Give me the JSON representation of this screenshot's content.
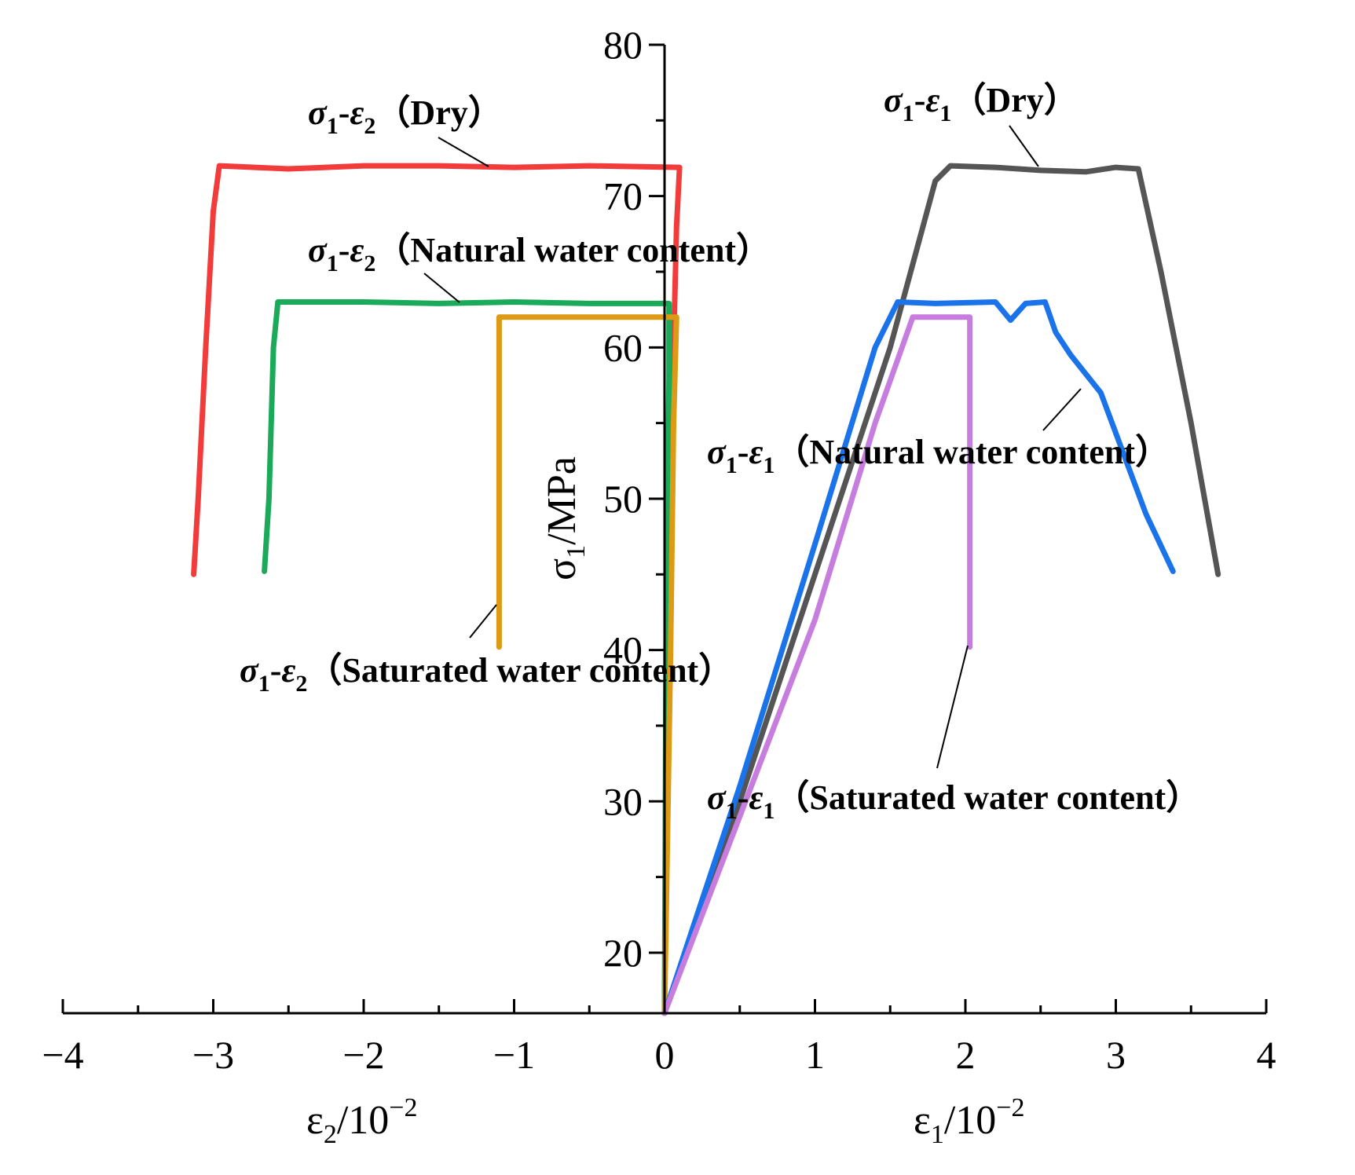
{
  "chart_data": {
    "type": "line",
    "x_axis": {
      "range": [
        -4,
        4
      ],
      "ticks": [
        "−4",
        "−3",
        "−2",
        "−1",
        "0",
        "1",
        "2",
        "3",
        "4"
      ],
      "tick_values": [
        -4,
        -3,
        -2,
        -1,
        0,
        1,
        2,
        3,
        4
      ]
    },
    "y_axis": {
      "range": [
        16,
        80
      ],
      "ticks": [
        "20",
        "30",
        "40",
        "50",
        "60",
        "70",
        "80"
      ],
      "tick_values": [
        20,
        30,
        40,
        50,
        60,
        70,
        80
      ]
    },
    "labels": {
      "ylabel": {
        "main": "σ",
        "sub": "1",
        "rest": "/MPa"
      },
      "xlabel_left": {
        "main": "ε",
        "sub": "2",
        "rest": "/10",
        "sup": "−2"
      },
      "xlabel_right": {
        "main": "ε",
        "sub": "1",
        "rest": "/10",
        "sup": "−2"
      }
    },
    "series": [
      {
        "id": "e2-dry",
        "color": "#f23b3b",
        "label": {
          "sigma": "σ",
          "s_sub": "1",
          "eps": "ε",
          "e_sub": "2",
          "condition": "（Dry）"
        },
        "points": [
          [
            0,
            16
          ],
          [
            0.02,
            40
          ],
          [
            0.06,
            60
          ],
          [
            0.08,
            68
          ],
          [
            0.1,
            71.9
          ],
          [
            -0.5,
            72
          ],
          [
            -1,
            71.9
          ],
          [
            -1.5,
            72
          ],
          [
            -2,
            72
          ],
          [
            -2.5,
            71.8
          ],
          [
            -2.96,
            72
          ],
          [
            -3.0,
            69
          ],
          [
            -3.05,
            60
          ],
          [
            -3.1,
            50
          ],
          [
            -3.13,
            45
          ]
        ]
      },
      {
        "id": "e2-natural",
        "color": "#1aaa5a",
        "label": {
          "sigma": "σ",
          "s_sub": "1",
          "eps": "ε",
          "e_sub": "2",
          "condition": "（Natural water content）"
        },
        "points": [
          [
            0,
            16
          ],
          [
            0.01,
            40
          ],
          [
            0.03,
            58
          ],
          [
            0.03,
            62.9
          ],
          [
            -0.5,
            62.9
          ],
          [
            -1,
            63
          ],
          [
            -1.5,
            62.9
          ],
          [
            -2,
            63
          ],
          [
            -2.57,
            63
          ],
          [
            -2.6,
            60
          ],
          [
            -2.63,
            50
          ],
          [
            -2.66,
            45.2
          ]
        ]
      },
      {
        "id": "e2-saturated",
        "color": "#dd9a14",
        "label": {
          "sigma": "σ",
          "s_sub": "1",
          "eps": "ε",
          "e_sub": "2",
          "condition": "（Saturated water content）"
        },
        "points": [
          [
            0,
            16
          ],
          [
            0.04,
            40
          ],
          [
            0.06,
            55
          ],
          [
            0.08,
            62
          ],
          [
            -0.5,
            62
          ],
          [
            -1.1,
            62
          ],
          [
            -1.1,
            40.2
          ]
        ]
      },
      {
        "id": "e1-dry",
        "color": "#555555",
        "label": {
          "sigma": "σ",
          "s_sub": "1",
          "eps": "ε",
          "e_sub": "1",
          "condition": "（Dry）"
        },
        "points": [
          [
            0,
            16
          ],
          [
            0.5,
            30
          ],
          [
            1,
            45
          ],
          [
            1.5,
            60
          ],
          [
            1.8,
            71
          ],
          [
            1.9,
            72
          ],
          [
            2.2,
            71.9
          ],
          [
            2.5,
            71.7
          ],
          [
            2.8,
            71.6
          ],
          [
            3.0,
            71.9
          ],
          [
            3.15,
            71.8
          ],
          [
            3.3,
            65
          ],
          [
            3.5,
            55
          ],
          [
            3.68,
            45
          ]
        ]
      },
      {
        "id": "e1-natural",
        "color": "#1a73e8",
        "label": {
          "sigma": "σ",
          "s_sub": "1",
          "eps": "ε",
          "e_sub": "1",
          "condition": "（Natural water content）"
        },
        "points": [
          [
            0,
            16
          ],
          [
            0.5,
            31
          ],
          [
            1,
            47
          ],
          [
            1.4,
            60
          ],
          [
            1.55,
            63
          ],
          [
            1.8,
            62.9
          ],
          [
            2.2,
            63
          ],
          [
            2.3,
            61.8
          ],
          [
            2.4,
            62.9
          ],
          [
            2.53,
            63
          ],
          [
            2.6,
            61
          ],
          [
            2.7,
            59.5
          ],
          [
            2.9,
            57
          ],
          [
            3.05,
            53
          ],
          [
            3.2,
            49
          ],
          [
            3.38,
            45.2
          ]
        ]
      },
      {
        "id": "e1-saturated",
        "color": "#c77dde",
        "label": {
          "sigma": "σ",
          "s_sub": "1",
          "eps": "ε",
          "e_sub": "1",
          "condition": "（Saturated water content）"
        },
        "points": [
          [
            0,
            16
          ],
          [
            0.5,
            29
          ],
          [
            1,
            42
          ],
          [
            1.4,
            55
          ],
          [
            1.65,
            62
          ],
          [
            2.03,
            62
          ],
          [
            2.03,
            40.2
          ]
        ]
      }
    ]
  }
}
